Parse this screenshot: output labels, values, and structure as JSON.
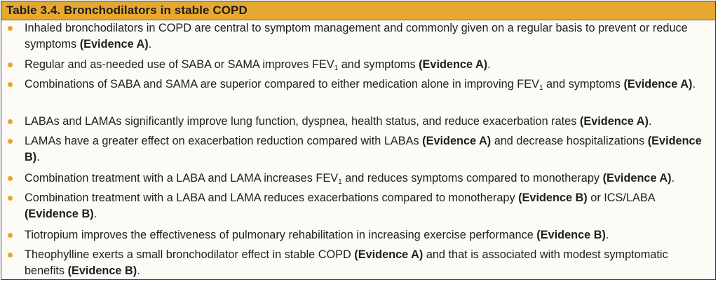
{
  "title": "Table 3.4. Bronchodilators in stable COPD",
  "items": [
    {
      "pre": "Inhaled bronchodilators in COPD are central to symptom management and commonly given on a regular basis to prevent or reduce symptoms ",
      "ev1": "(Evidence A)",
      "end": "."
    },
    {
      "pre": "Regular and as-needed use of SABA or SAMA improves FEV",
      "sub": "1",
      "mid": " and symptoms ",
      "ev1": "(Evidence A)",
      "end": "."
    },
    {
      "pre": "Combinations of SABA and SAMA are superior compared to either medication alone in improving FEV",
      "sub": "1",
      "mid": " and symptoms ",
      "ev1": "(Evidence A)",
      "end": "."
    },
    {
      "pre": "LABAs and LAMAs significantly improve lung function, dyspnea, health status, and reduce exacerbation rates ",
      "ev1": "(Evidence A)",
      "end": "."
    },
    {
      "pre": "LAMAs have a greater effect on exacerbation reduction compared with LABAs ",
      "ev1": "(Evidence A)",
      "mid2": " and decrease hospitalizations ",
      "ev2": "(Evidence B)",
      "end": "."
    },
    {
      "pre": "Combination treatment with a LABA and LAMA increases FEV",
      "sub": "1",
      "mid": " and reduces symptoms compared to monotherapy ",
      "ev1": "(Evidence A)",
      "end": "."
    },
    {
      "pre": "Combination treatment with a LABA and LAMA reduces exacerbations compared to monotherapy ",
      "ev1": "(Evidence B)",
      "mid2": " or ICS/LABA ",
      "ev2": "(Evidence B)",
      "end": "."
    },
    {
      "pre": "Tiotropium improves the effectiveness of pulmonary rehabilitation in increasing exercise performance ",
      "ev1": "(Evidence B)",
      "end": "."
    },
    {
      "pre": "Theophylline exerts a small bronchodilator effect in stable COPD ",
      "ev1": "(Evidence A)",
      "mid2": " and that is associated with modest symptomatic benefits ",
      "ev2": "(Evidence B)",
      "end": "."
    }
  ],
  "colors": {
    "accent": "#e5a830",
    "border": "#4a4a4a",
    "text": "#1e1e1e"
  }
}
